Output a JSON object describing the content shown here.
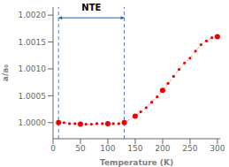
{
  "chart_data": {
    "type": "line",
    "xlabel": "Temperature (K)",
    "ylabel": "a/a₀",
    "xlim": [
      0,
      305
    ],
    "ylim": [
      0.9997,
      1.00215
    ],
    "xticks": [
      0,
      50,
      100,
      150,
      200,
      250,
      300
    ],
    "yticks": [
      {
        "value": 1.0,
        "label": "1.0000"
      },
      1.0005,
      {
        "value": 1.001,
        "label": "1.0010"
      },
      1.0015,
      {
        "value": 1.002,
        "label": "1.0020"
      }
    ],
    "series": [
      {
        "type": "line",
        "line_style": "dashed",
        "marker": "none",
        "color": "#ff9999",
        "x": [
          10,
          20,
          30,
          40,
          50,
          60,
          70,
          80,
          90,
          100,
          110,
          120,
          130,
          150,
          160,
          170,
          180,
          190,
          200,
          210,
          220,
          230,
          240,
          250,
          260,
          270,
          280,
          290,
          300
        ],
        "values": [
          1.0,
          1.0,
          0.99998,
          0.99998,
          0.99997,
          0.99997,
          0.99997,
          0.99998,
          0.99998,
          0.99998,
          0.99998,
          0.99998,
          1.0,
          1.00012,
          1.0002,
          1.00028,
          1.00038,
          1.00048,
          1.0006,
          1.00073,
          1.00086,
          1.00099,
          1.00111,
          1.0012,
          1.00133,
          1.00145,
          1.00152,
          1.00158,
          1.0016
        ]
      },
      {
        "type": "scatter",
        "marker": "point",
        "color": "#ee0000",
        "x": [
          10,
          20,
          30,
          40,
          50,
          60,
          70,
          80,
          90,
          100,
          110,
          120,
          130,
          150,
          160,
          170,
          180,
          190,
          200,
          210,
          220,
          230,
          240,
          250,
          260,
          270,
          280,
          290,
          300
        ],
        "values": [
          1.0,
          1.0,
          0.99998,
          0.99998,
          0.99997,
          0.99997,
          0.99997,
          0.99998,
          0.99998,
          0.99998,
          0.99998,
          0.99998,
          1.0,
          1.00012,
          1.0002,
          1.00028,
          1.00038,
          1.00048,
          1.0006,
          1.00073,
          1.00086,
          1.00099,
          1.00111,
          1.0012,
          1.00133,
          1.00145,
          1.00152,
          1.00158,
          1.0016
        ]
      },
      {
        "type": "scatter",
        "marker": "circle",
        "color": "#ee0000",
        "x": [
          10,
          50,
          100,
          130,
          150,
          200,
          300
        ],
        "values": [
          1.0,
          0.99997,
          0.99998,
          1.0,
          1.00012,
          1.0006,
          1.0016
        ]
      }
    ],
    "vlines": [
      {
        "x": 10,
        "color": "#5577cc"
      },
      {
        "x": 130,
        "color": "#5577cc"
      }
    ],
    "arrow": {
      "x1": 10,
      "x2": 130,
      "y": 1.00195,
      "color": "#3355aa"
    },
    "annotations": [
      {
        "text": "NTE",
        "x": 70,
        "y": 1.002
      }
    ]
  }
}
